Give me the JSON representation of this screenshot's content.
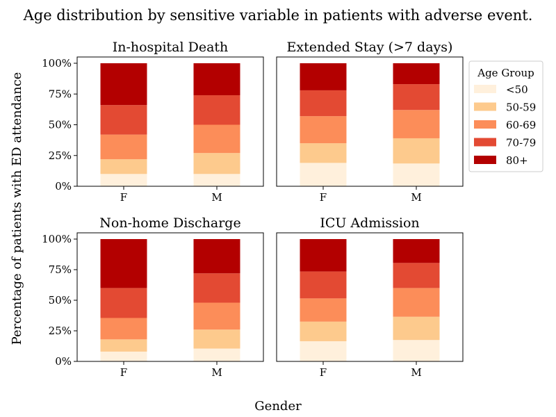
{
  "figure": {
    "title": "Age distribution by sensitive variable in patients with adverse event.",
    "ylabel": "Percentage of patients with ED attendance",
    "xlabel": "Gender"
  },
  "legend": {
    "title": "Age Group",
    "position": "right of top-right panel",
    "entries": [
      "<50",
      "50-59",
      "60-69",
      "70-79",
      "80+"
    ]
  },
  "colors": {
    "<50": "#fff0dc",
    "50-59": "#fdca8d",
    "60-69": "#fc8d59",
    "70-79": "#e34a33",
    "80+": "#b30000"
  },
  "chart_data": [
    {
      "type": "bar",
      "stacked": true,
      "title": "In-hospital Death",
      "categories": [
        "F",
        "M"
      ],
      "ylim": [
        0,
        100
      ],
      "yticks": [
        "0%",
        "25%",
        "50%",
        "75%",
        "100%"
      ],
      "series": [
        {
          "name": "<50",
          "values": [
            10,
            10
          ]
        },
        {
          "name": "50-59",
          "values": [
            12,
            17
          ]
        },
        {
          "name": "60-69",
          "values": [
            20,
            23
          ]
        },
        {
          "name": "70-79",
          "values": [
            24,
            24
          ]
        },
        {
          "name": "80+",
          "values": [
            34,
            26
          ]
        }
      ]
    },
    {
      "type": "bar",
      "stacked": true,
      "title": "Extended Stay (>7 days)",
      "categories": [
        "F",
        "M"
      ],
      "ylim": [
        0,
        100
      ],
      "yticks": [],
      "series": [
        {
          "name": "<50",
          "values": [
            19,
            18.5
          ]
        },
        {
          "name": "50-59",
          "values": [
            16,
            20.5
          ]
        },
        {
          "name": "60-69",
          "values": [
            22,
            23
          ]
        },
        {
          "name": "70-79",
          "values": [
            21,
            21
          ]
        },
        {
          "name": "80+",
          "values": [
            22,
            17
          ]
        }
      ]
    },
    {
      "type": "bar",
      "stacked": true,
      "title": "Non-home Discharge",
      "categories": [
        "F",
        "M"
      ],
      "ylim": [
        0,
        100
      ],
      "yticks": [
        "0%",
        "25%",
        "50%",
        "75%",
        "100%"
      ],
      "series": [
        {
          "name": "<50",
          "values": [
            8,
            10.5
          ]
        },
        {
          "name": "50-59",
          "values": [
            10,
            15.5
          ]
        },
        {
          "name": "60-69",
          "values": [
            17.5,
            22
          ]
        },
        {
          "name": "70-79",
          "values": [
            24.5,
            24
          ]
        },
        {
          "name": "80+",
          "values": [
            40,
            28
          ]
        }
      ]
    },
    {
      "type": "bar",
      "stacked": true,
      "title": "ICU Admission",
      "categories": [
        "F",
        "M"
      ],
      "ylim": [
        0,
        100
      ],
      "yticks": [],
      "series": [
        {
          "name": "<50",
          "values": [
            16.5,
            17.5
          ]
        },
        {
          "name": "50-59",
          "values": [
            16,
            19
          ]
        },
        {
          "name": "60-69",
          "values": [
            19,
            23.5
          ]
        },
        {
          "name": "70-79",
          "values": [
            22,
            20.5
          ]
        },
        {
          "name": "80+",
          "values": [
            26.5,
            19.5
          ]
        }
      ]
    }
  ]
}
